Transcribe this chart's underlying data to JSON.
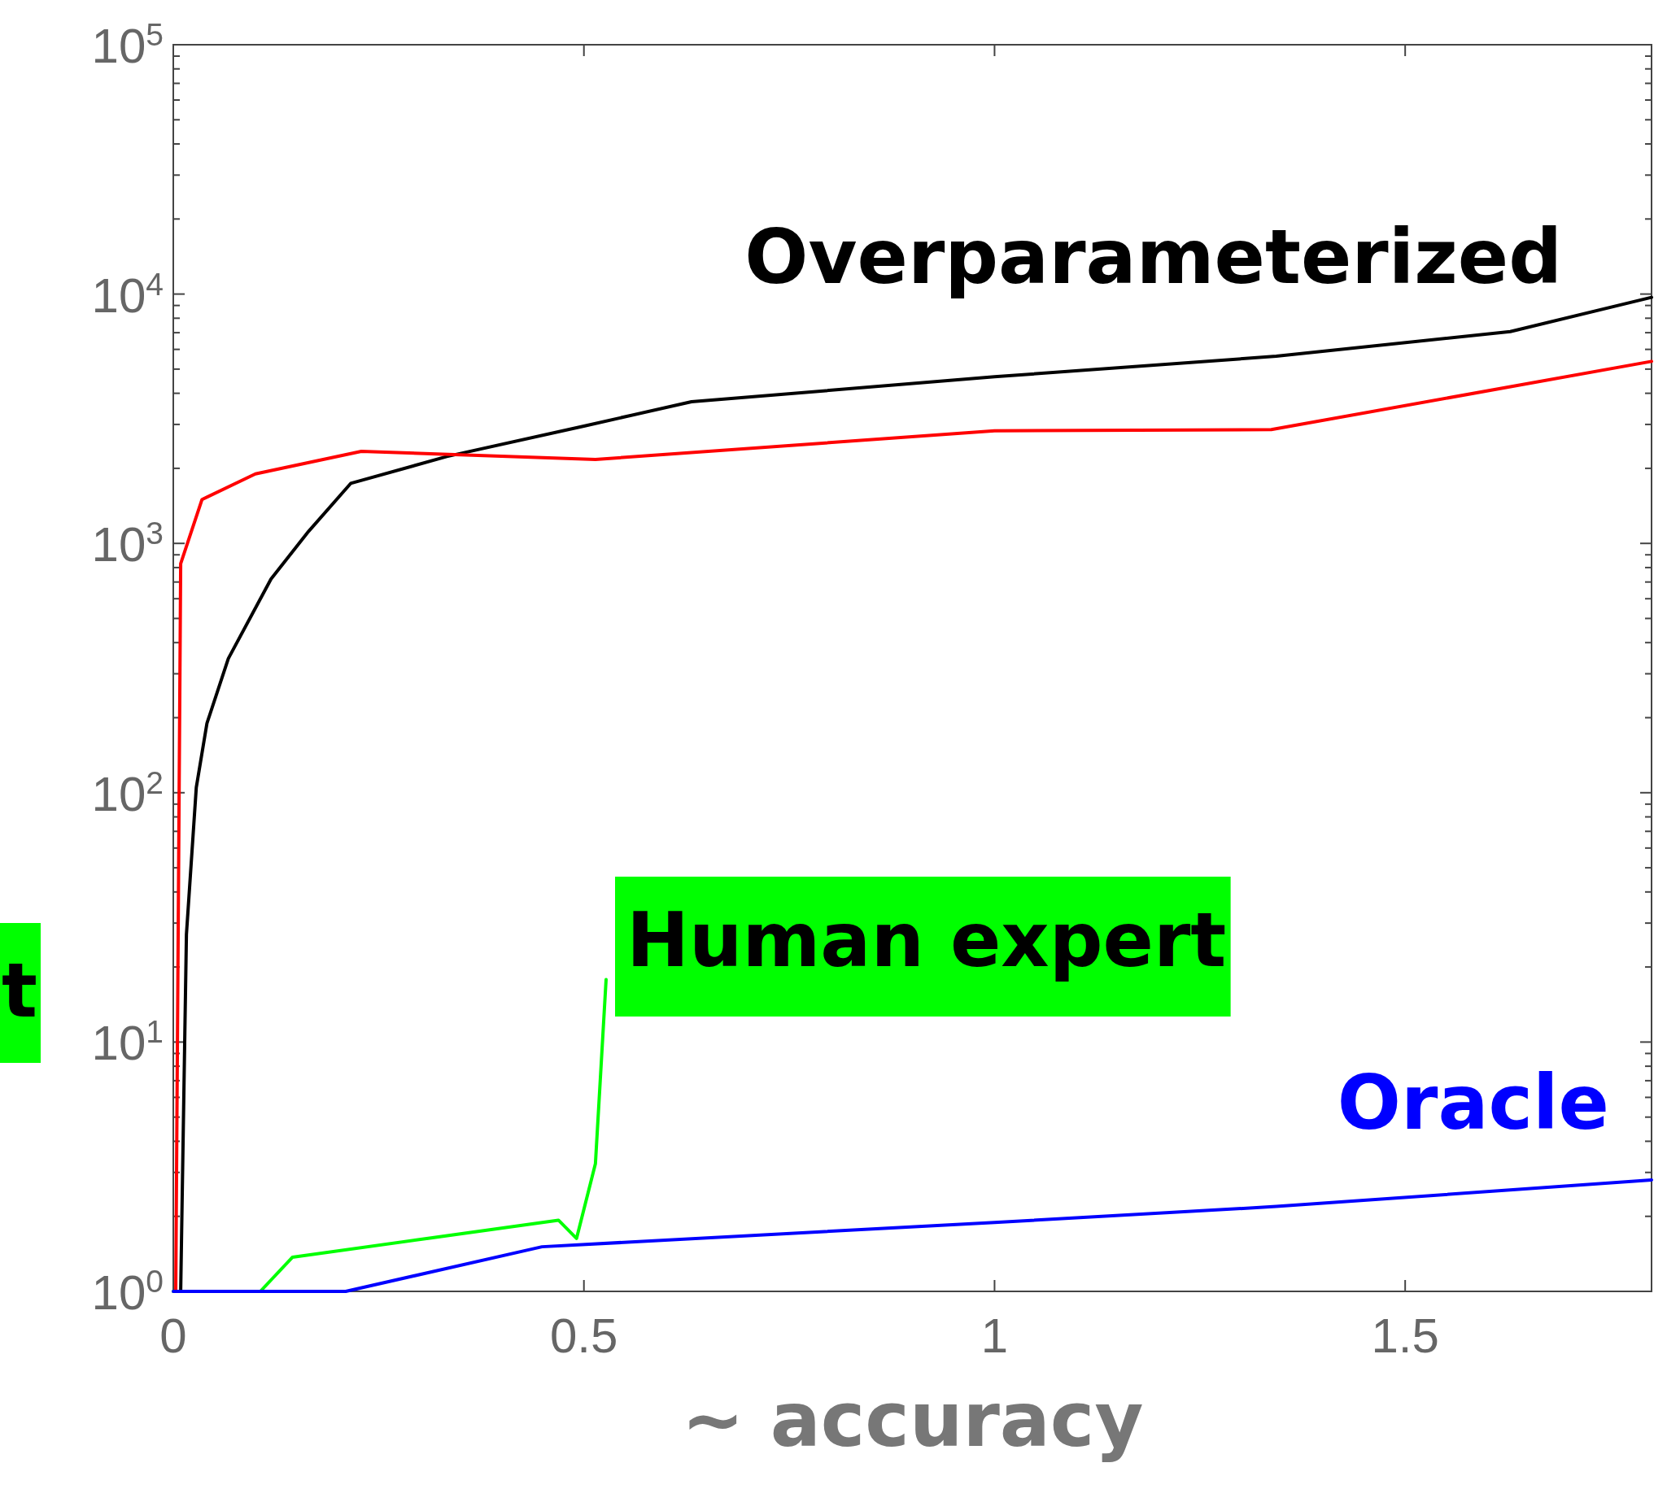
{
  "chart_data": {
    "type": "line",
    "xlabel": "~ accuracy",
    "log": "y",
    "grid": false,
    "xlim": [
      0,
      1.8
    ],
    "ylim": [
      1,
      100000
    ],
    "xticks": [
      0,
      0.5,
      1,
      1.5
    ],
    "yticks": [
      {
        "value": 1,
        "label": "10$^{0}$"
      },
      {
        "value": 2,
        "label": null
      },
      {
        "value": 3,
        "label": null
      },
      {
        "value": 4,
        "label": null
      },
      {
        "value": 5,
        "label": null
      },
      {
        "value": 6,
        "label": null
      },
      {
        "value": 7,
        "label": null
      },
      {
        "value": 8,
        "label": null
      },
      {
        "value": 9,
        "label": null
      },
      {
        "value": 10,
        "label": "10$^{1}$"
      },
      {
        "value": 20,
        "label": null
      },
      {
        "value": 30,
        "label": null
      },
      {
        "value": 40,
        "label": null
      },
      {
        "value": 50,
        "label": null
      },
      {
        "value": 60,
        "label": null
      },
      {
        "value": 70,
        "label": null
      },
      {
        "value": 80,
        "label": null
      },
      {
        "value": 90,
        "label": null
      },
      {
        "value": 100,
        "label": "10$^{2}$"
      },
      {
        "value": 200,
        "label": null
      },
      {
        "value": 300,
        "label": null
      },
      {
        "value": 400,
        "label": null
      },
      {
        "value": 500,
        "label": null
      },
      {
        "value": 600,
        "label": null
      },
      {
        "value": 700,
        "label": null
      },
      {
        "value": 800,
        "label": null
      },
      {
        "value": 900,
        "label": null
      },
      {
        "value": 1000,
        "label": "10$^{3}$"
      },
      {
        "value": 2000,
        "label": null
      },
      {
        "value": 3000,
        "label": null
      },
      {
        "value": 4000,
        "label": null
      },
      {
        "value": 5000,
        "label": null
      },
      {
        "value": 6000,
        "label": null
      },
      {
        "value": 7000,
        "label": null
      },
      {
        "value": 8000,
        "label": null
      },
      {
        "value": 9000,
        "label": null
      },
      {
        "value": 10000,
        "label": "10$^{4}$"
      },
      {
        "value": 20000,
        "label": null
      },
      {
        "value": 30000,
        "label": null
      },
      {
        "value": 40000,
        "label": null
      },
      {
        "value": 50000,
        "label": null
      },
      {
        "value": 60000,
        "label": null
      },
      {
        "value": 70000,
        "label": null
      },
      {
        "value": 80000,
        "label": null
      },
      {
        "value": 90000,
        "label": null
      },
      {
        "value": 100000,
        "label": "10$^{5}$"
      }
    ],
    "series": [
      {
        "name": "Overparameterized",
        "color": "#000000",
        "x": [
          0.009,
          0.016,
          0.028,
          0.041,
          0.067,
          0.119,
          0.165,
          0.216,
          0.333,
          0.501,
          0.631,
          1,
          1.343,
          1.628,
          1.8
        ],
        "values": [
          1,
          27,
          105,
          190,
          345,
          720,
          1120,
          1740,
          2230,
          2960,
          3700,
          4660,
          5630,
          7070,
          9700
        ]
      },
      {
        "color": "#ff0000",
        "x": [
          0.003,
          0.009,
          0.035,
          0.1,
          0.229,
          0.514,
          1,
          1.337,
          1.8
        ],
        "values": [
          1,
          830,
          1500,
          1900,
          2340,
          2170,
          2830,
          2860,
          5370
        ]
      },
      {
        "name": "Human expert",
        "color": "#00ff00",
        "x": [
          0,
          0.106,
          0.145,
          0.469,
          0.491,
          0.514,
          0.527
        ],
        "values": [
          1,
          1,
          1.37,
          1.93,
          1.63,
          3.25,
          17.8
        ]
      },
      {
        "name": "Oracle",
        "color": "#0000ff",
        "x": [
          0,
          0.21,
          0.449,
          1,
          1.343,
          1.8
        ],
        "values": [
          1,
          1,
          1.51,
          1.89,
          2.19,
          2.8
        ]
      }
    ],
    "annotations": [
      "t"
    ]
  }
}
